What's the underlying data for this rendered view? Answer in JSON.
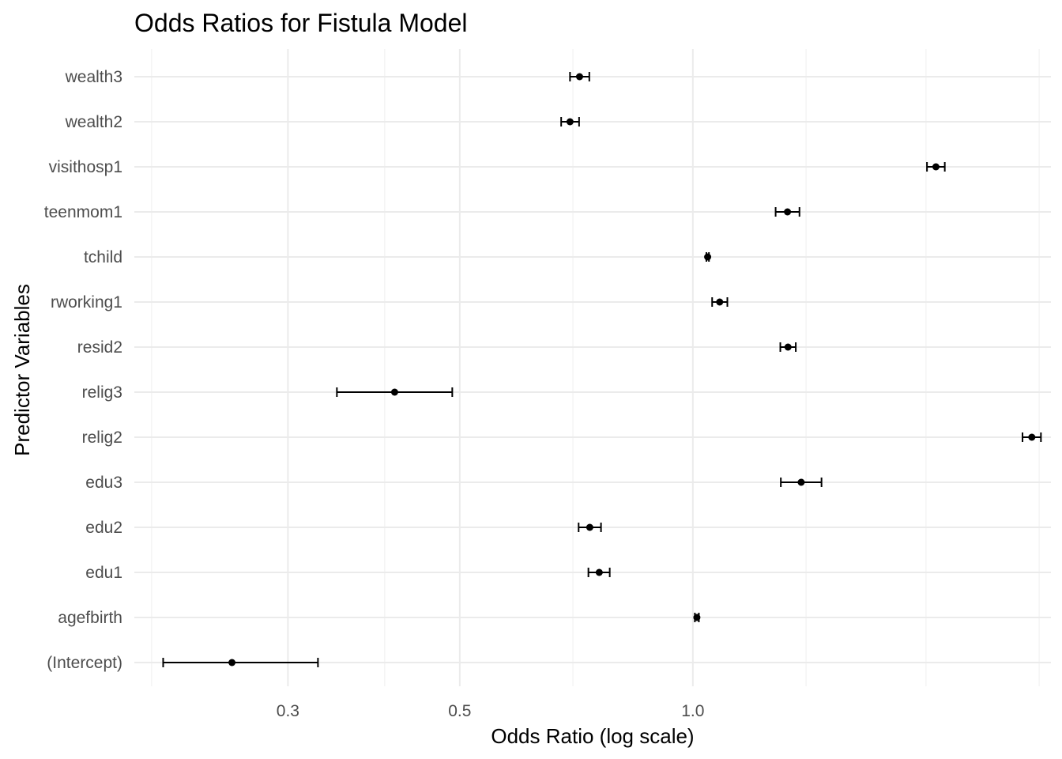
{
  "chart_data": {
    "type": "scatter",
    "subtype": "forest-plot-with-error-bars",
    "title": "Odds Ratios for Fistula Model",
    "xlabel": "Odds Ratio (log scale)",
    "ylabel": "Predictor Variables",
    "x_scale": "log",
    "xlim": [
      0.19,
      2.9
    ],
    "x_ticks": [
      0.3,
      0.5,
      1.0
    ],
    "x_tick_labels": [
      "0.3",
      "0.5",
      "1.0"
    ],
    "x_minor_gridlines": [
      0.2,
      0.4,
      0.7,
      1.4,
      2.0,
      2.8
    ],
    "grid": true,
    "legend": "none",
    "series": [
      {
        "points": [
          {
            "label": "(Intercept)",
            "or": 0.254,
            "lower": 0.207,
            "upper": 0.328
          },
          {
            "label": "agefbirth",
            "or": 1.012,
            "lower": 1.006,
            "upper": 1.018
          },
          {
            "label": "edu1",
            "or": 0.757,
            "lower": 0.733,
            "upper": 0.781
          },
          {
            "label": "edu2",
            "or": 0.736,
            "lower": 0.712,
            "upper": 0.761
          },
          {
            "label": "edu3",
            "or": 1.38,
            "lower": 1.299,
            "upper": 1.466
          },
          {
            "label": "relig2",
            "or": 2.74,
            "lower": 2.665,
            "upper": 2.815
          },
          {
            "label": "relig3",
            "or": 0.412,
            "lower": 0.347,
            "upper": 0.489
          },
          {
            "label": "resid2",
            "or": 1.327,
            "lower": 1.297,
            "upper": 1.358
          },
          {
            "label": "rworking1",
            "or": 1.083,
            "lower": 1.059,
            "upper": 1.108
          },
          {
            "label": "tchild",
            "or": 1.045,
            "lower": 1.041,
            "upper": 1.049
          },
          {
            "label": "teenmom1",
            "or": 1.325,
            "lower": 1.279,
            "upper": 1.373
          },
          {
            "label": "visithosp1",
            "or": 2.06,
            "lower": 2.006,
            "upper": 2.115
          },
          {
            "label": "wealth2",
            "or": 0.694,
            "lower": 0.676,
            "upper": 0.713
          },
          {
            "label": "wealth3",
            "or": 0.714,
            "lower": 0.694,
            "upper": 0.735
          }
        ]
      }
    ],
    "colors": {
      "point": "#000000",
      "error_bar": "#000000",
      "grid": "#ebebeb",
      "tick_text": "#4d4d4d"
    }
  }
}
